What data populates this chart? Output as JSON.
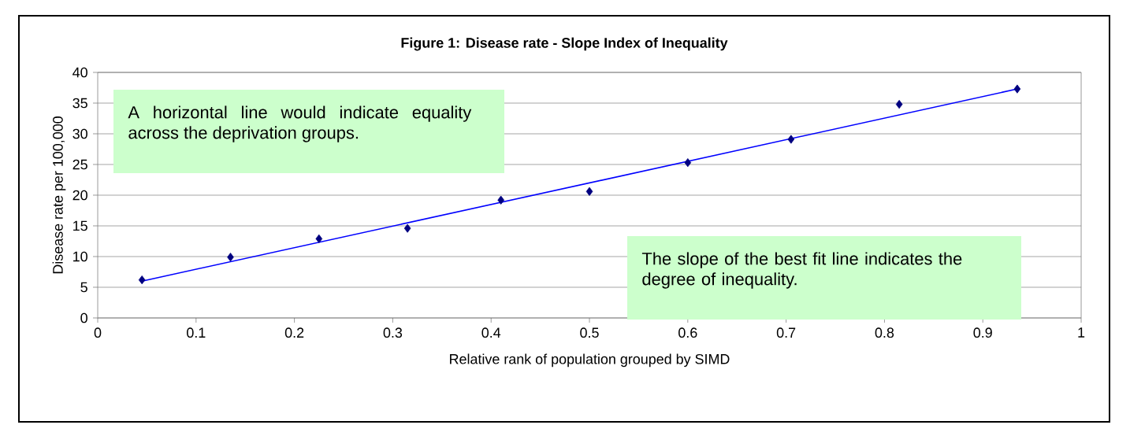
{
  "chart_data": {
    "type": "scatter",
    "title": "Figure 1: Disease rate - Slope Index of Inequality",
    "xlabel": "Relative rank of population grouped by SIMD",
    "ylabel": "Disease rate per 100,000",
    "xlim": [
      0,
      1
    ],
    "ylim": [
      0,
      40
    ],
    "xticks": [
      0,
      0.1,
      0.2,
      0.3,
      0.4,
      0.5,
      0.6,
      0.7,
      0.8,
      0.9,
      1
    ],
    "yticks": [
      0,
      5,
      10,
      15,
      20,
      25,
      30,
      35,
      40
    ],
    "grid": "y",
    "series": [
      {
        "color": "#000080",
        "marker": "diamond",
        "x": [
          0.045,
          0.135,
          0.225,
          0.315,
          0.41,
          0.5,
          0.6,
          0.705,
          0.815,
          0.935
        ],
        "values": [
          6.2,
          9.9,
          12.9,
          14.6,
          19.2,
          20.6,
          25.3,
          29.1,
          34.8,
          37.3
        ]
      },
      {
        "type": "line",
        "color": "#0000ff",
        "x": [
          0.045,
          0.935
        ],
        "values": [
          6.0,
          37.3
        ]
      }
    ],
    "annotations": [
      "A horizontal line would indicate equality across the deprivation groups.",
      "The slope of the best fit line indicates the degree of inequality."
    ]
  }
}
